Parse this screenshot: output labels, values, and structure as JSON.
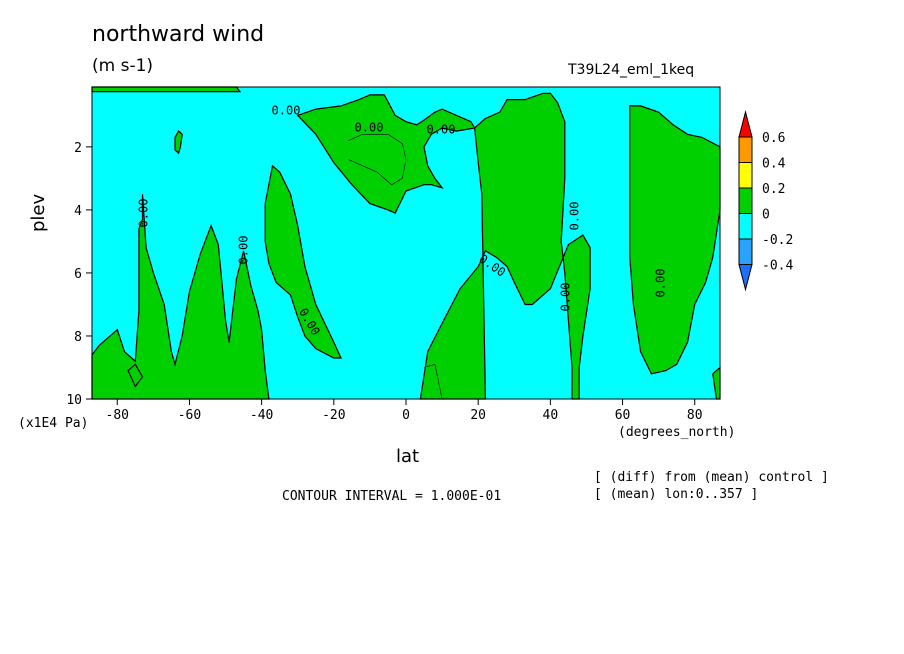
{
  "header": {
    "title": "northward wind",
    "units": "(m s-1)",
    "run": "T39L24_eml_1keq"
  },
  "footer": {
    "interval": "CONTOUR INTERVAL = 1.000E-01",
    "note1": "[ (diff) from (mean) control ]",
    "note2": "[ (mean) lon:0..357 ]"
  },
  "chart_data": {
    "type": "contour",
    "title": "northward wind",
    "xlabel": "lat",
    "ylabel": "plev",
    "x_unit": "(degrees_north)",
    "y_unit": "(x1E4 Pa)",
    "xlim": [
      -87,
      87
    ],
    "ylim": [
      10,
      0.1
    ],
    "x_ticks": [
      -80,
      -60,
      -40,
      -20,
      0,
      20,
      40,
      60,
      80
    ],
    "y_ticks": [
      2,
      4,
      6,
      8,
      10
    ],
    "x_tick_labels": [
      "-80",
      "-60",
      "-40",
      "-20",
      "0",
      "20",
      "40",
      "60",
      "80"
    ],
    "y_tick_labels": [
      "2",
      "4",
      "6",
      "8",
      "10"
    ],
    "contour_interval": 0.1,
    "contour_labels": [
      "0.00",
      "0.00",
      "0.00",
      "0.00",
      "0.00",
      "0.00",
      "0.00",
      "0.00",
      "0.00",
      "0.00"
    ],
    "colorbar": {
      "levels": [
        -0.4,
        -0.2,
        0,
        0.2,
        0.4,
        0.6
      ],
      "labels": [
        "-0.4",
        "-0.2",
        "0",
        "0.2",
        "0.4",
        "0.6"
      ],
      "colors": [
        "#1e6eff",
        "#2aa2ff",
        "#00ffff",
        "#00d000",
        "#ffff00",
        "#ff9900",
        "#ff0000"
      ]
    },
    "regions": [
      {
        "id": "A",
        "band": "0 to 0.2",
        "color": "#00d000",
        "poly": [
          [
            -87,
            8.6
          ],
          [
            -85,
            8.3
          ],
          [
            -80,
            7.8
          ],
          [
            -78,
            8.5
          ],
          [
            -75,
            8.8
          ],
          [
            -74,
            7.2
          ],
          [
            -74,
            4.6
          ],
          [
            -73,
            4.3
          ],
          [
            -73,
            3.5
          ],
          [
            -72,
            5.2
          ],
          [
            -70,
            6.0
          ],
          [
            -67,
            7.0
          ],
          [
            -65,
            8.5
          ],
          [
            -64,
            8.9
          ],
          [
            -62,
            8.0
          ],
          [
            -60,
            6.6
          ],
          [
            -57,
            5.4
          ],
          [
            -54,
            4.5
          ],
          [
            -52,
            5.1
          ],
          [
            -50,
            7.5
          ],
          [
            -49,
            8.2
          ],
          [
            -47,
            6.2
          ],
          [
            -45,
            5.3
          ],
          [
            -43,
            6.4
          ],
          [
            -41,
            7.2
          ],
          [
            -40,
            7.8
          ],
          [
            -39,
            9.1
          ],
          [
            -38,
            10
          ],
          [
            -87,
            10
          ]
        ]
      },
      {
        "id": "B",
        "band": "0 to 0.2",
        "color": "#00d000",
        "poly": [
          [
            -39,
            3.8
          ],
          [
            -37,
            2.6
          ],
          [
            -35,
            2.8
          ],
          [
            -32,
            3.5
          ],
          [
            -30,
            4.5
          ],
          [
            -28,
            5.8
          ],
          [
            -25,
            7.0
          ],
          [
            -20,
            8.2
          ],
          [
            -18,
            8.7
          ],
          [
            -20,
            8.7
          ],
          [
            -25,
            8.4
          ],
          [
            -28,
            8.0
          ],
          [
            -30,
            7.4
          ],
          [
            -32,
            6.7
          ],
          [
            -36,
            6.3
          ],
          [
            -38,
            5.7
          ],
          [
            -39,
            5.0
          ]
        ]
      },
      {
        "id": "C",
        "band": "0 to 0.2",
        "color": "#00d000",
        "poly": [
          [
            -30,
            1.0
          ],
          [
            -25,
            0.8
          ],
          [
            -18,
            0.7
          ],
          [
            -13,
            0.5
          ],
          [
            -10,
            0.35
          ],
          [
            -6,
            0.35
          ],
          [
            -3,
            1.0
          ],
          [
            0,
            1.2
          ],
          [
            3,
            1.3
          ],
          [
            5,
            1.15
          ],
          [
            8,
            0.9
          ],
          [
            10,
            0.8
          ],
          [
            14,
            1.0
          ],
          [
            18,
            1.2
          ],
          [
            19,
            1.4
          ],
          [
            14,
            1.5
          ],
          [
            10,
            1.4
          ],
          [
            7,
            1.6
          ],
          [
            5,
            2.0
          ],
          [
            6,
            2.6
          ],
          [
            8,
            3.0
          ],
          [
            10,
            3.3
          ],
          [
            7,
            3.2
          ],
          [
            5,
            3.2
          ],
          [
            0,
            3.4
          ],
          [
            -3,
            4.1
          ],
          [
            -5,
            4.0
          ],
          [
            -10,
            3.8
          ],
          [
            -15,
            3.2
          ],
          [
            -20,
            2.5
          ],
          [
            -25,
            1.6
          ]
        ]
      },
      {
        "id": "D",
        "band": "0 to 0.2",
        "color": "#00d000",
        "poly": [
          [
            19,
            1.4
          ],
          [
            22,
            1.1
          ],
          [
            26,
            0.9
          ],
          [
            28,
            0.5
          ],
          [
            33,
            0.5
          ],
          [
            38,
            0.3
          ],
          [
            40,
            0.3
          ],
          [
            42,
            0.6
          ],
          [
            44,
            1.2
          ],
          [
            44,
            3.0
          ],
          [
            43,
            5.0
          ],
          [
            44,
            6.0
          ],
          [
            45,
            7.5
          ],
          [
            46,
            9.0
          ],
          [
            46,
            10
          ],
          [
            48,
            10
          ],
          [
            48,
            9.0
          ],
          [
            49,
            8.0
          ],
          [
            51,
            6.5
          ],
          [
            51,
            5.2
          ],
          [
            49,
            4.8
          ],
          [
            45,
            5.1
          ],
          [
            40,
            6.5
          ],
          [
            35,
            7.0
          ],
          [
            33,
            7.0
          ],
          [
            30,
            6.3
          ],
          [
            28,
            5.8
          ],
          [
            25,
            5.5
          ],
          [
            22,
            5.3
          ],
          [
            20,
            5.8
          ],
          [
            15,
            6.5
          ],
          [
            10,
            7.6
          ],
          [
            6,
            8.5
          ],
          [
            4,
            10
          ],
          [
            22,
            10
          ],
          [
            21,
            3.5
          ],
          [
            20,
            2.5
          ]
        ]
      },
      {
        "id": "E",
        "band": "0 to 0.2",
        "color": "#00d000",
        "poly": [
          [
            62,
            0.7
          ],
          [
            65,
            0.7
          ],
          [
            70,
            0.9
          ],
          [
            74,
            1.3
          ],
          [
            78,
            1.6
          ],
          [
            82,
            1.7
          ],
          [
            87,
            2.0
          ],
          [
            87,
            4.0
          ],
          [
            85,
            5.5
          ],
          [
            83,
            6.3
          ],
          [
            80,
            7.0
          ],
          [
            78,
            8.2
          ],
          [
            75,
            8.9
          ],
          [
            72,
            9.1
          ],
          [
            68,
            9.2
          ],
          [
            65,
            8.5
          ],
          [
            63,
            7.0
          ],
          [
            62,
            5.5
          ],
          [
            62,
            3.0
          ]
        ]
      },
      {
        "id": "F",
        "band": "0 to 0.2",
        "color": "#00d000",
        "poly": [
          [
            -87,
            0.1
          ],
          [
            -47,
            0.1
          ],
          [
            -46,
            0.25
          ],
          [
            -87,
            0.25
          ]
        ]
      },
      {
        "id": "G",
        "band": "0 to 0.2",
        "color": "#00d000",
        "poly": [
          [
            -64,
            1.7
          ],
          [
            -63,
            1.5
          ],
          [
            -62,
            1.6
          ],
          [
            -62.5,
            2.0
          ],
          [
            -63,
            2.2
          ],
          [
            -64,
            2.1
          ]
        ]
      },
      {
        "id": "H",
        "band": "0 to 0.2",
        "color": "#00d000",
        "poly": [
          [
            -77,
            9.1
          ],
          [
            -75,
            8.9
          ],
          [
            -73,
            9.3
          ],
          [
            -75,
            9.6
          ]
        ]
      },
      {
        "id": "I",
        "band": "0 to 0.2",
        "color": "#00d000",
        "poly": [
          [
            85,
            9.2
          ],
          [
            87,
            9.0
          ],
          [
            87,
            10
          ],
          [
            86,
            10
          ]
        ]
      }
    ],
    "thin_contours": [
      {
        "poly": [
          [
            -16,
            1.8
          ],
          [
            -12,
            1.6
          ],
          [
            -5,
            1.6
          ],
          [
            -1,
            1.9
          ],
          [
            0,
            2.4
          ],
          [
            -1,
            3.0
          ],
          [
            -4,
            3.2
          ],
          [
            -8,
            2.8
          ],
          [
            -12,
            2.6
          ],
          [
            -16,
            2.4
          ]
        ]
      },
      {
        "poly": [
          [
            5,
            9.0
          ],
          [
            8,
            8.9
          ],
          [
            10,
            10
          ]
        ]
      }
    ]
  }
}
